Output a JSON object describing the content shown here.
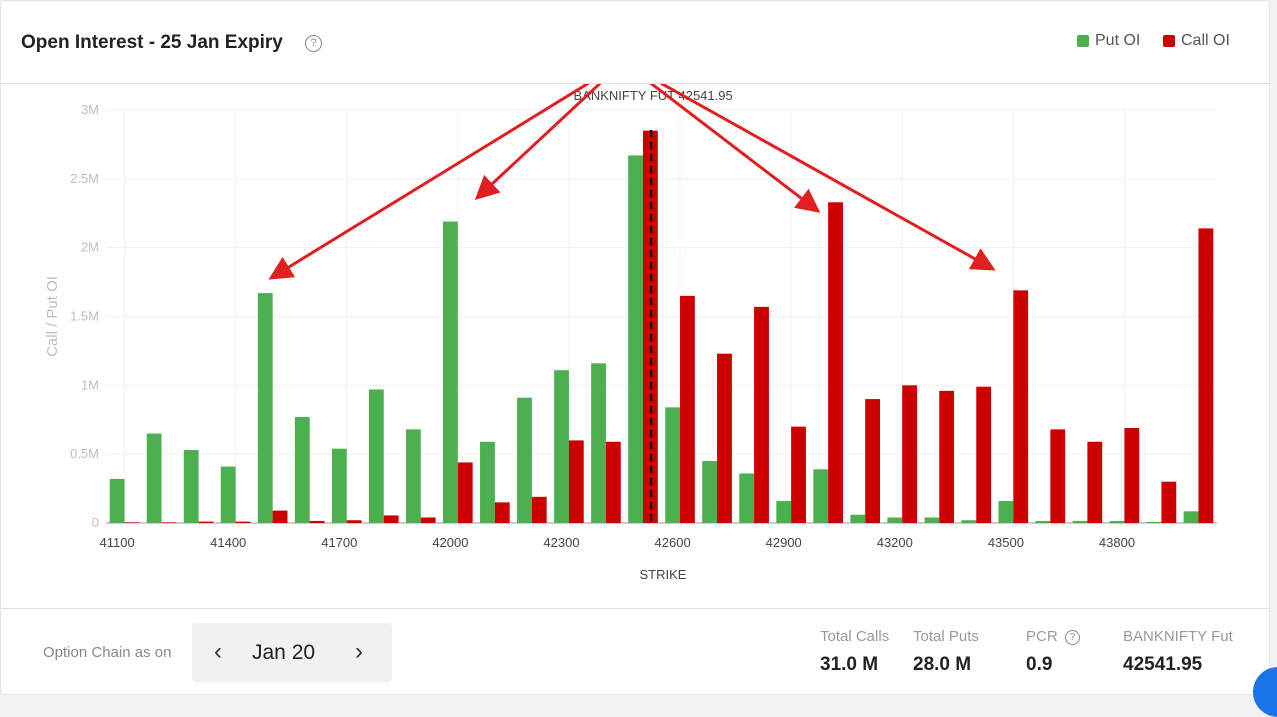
{
  "header": {
    "title": "Open Interest - 25 Jan Expiry",
    "help_icon": "question-circle-icon"
  },
  "chart_data": {
    "type": "bar",
    "title": "Open Interest - 25 Jan Expiry",
    "xlabel": "STRIKE",
    "ylabel": "Call / Put OI",
    "ylim": [
      0,
      3000000
    ],
    "y_ticks": [
      "0",
      "0.5M",
      "1M",
      "1.5M",
      "2M",
      "2.5M",
      "3M"
    ],
    "x_tick_labels": [
      "41100",
      "41400",
      "41700",
      "42000",
      "42300",
      "42600",
      "42900",
      "43200",
      "43500",
      "43800"
    ],
    "categories": [
      41100,
      41200,
      41300,
      41400,
      41500,
      41600,
      41700,
      41800,
      41900,
      42000,
      42100,
      42200,
      42300,
      42400,
      42500,
      42600,
      42700,
      42800,
      42900,
      43000,
      43100,
      43200,
      43300,
      43400,
      43500,
      43600,
      43700,
      43800,
      43900,
      44000
    ],
    "series": [
      {
        "name": "Put OI",
        "color": "#4caf50",
        "values": [
          320000,
          650000,
          530000,
          410000,
          1670000,
          770000,
          540000,
          970000,
          680000,
          2190000,
          590000,
          910000,
          1110000,
          1160000,
          2670000,
          840000,
          450000,
          360000,
          160000,
          390000,
          60000,
          40000,
          40000,
          20000,
          160000,
          15000,
          15000,
          15000,
          8000,
          85000
        ]
      },
      {
        "name": "Call OI",
        "color": "#cc0000",
        "values": [
          5000,
          5000,
          10000,
          10000,
          90000,
          15000,
          20000,
          55000,
          40000,
          440000,
          150000,
          190000,
          600000,
          590000,
          2850000,
          1650000,
          1230000,
          1570000,
          700000,
          2330000,
          900000,
          1000000,
          960000,
          990000,
          1690000,
          680000,
          590000,
          690000,
          300000,
          2140000
        ]
      }
    ],
    "marker": {
      "label": "BANKNIFTY FUT 42541.95",
      "value": 42541.95
    },
    "grid": true,
    "legend_position": "top-right",
    "annotation_color": "#e02020"
  },
  "footer": {
    "option_chain_label": "Option Chain as on",
    "date": "Jan 20",
    "prev_icon": "chevron-left-icon",
    "next_icon": "chevron-right-icon",
    "stats": [
      {
        "label": "Total Calls",
        "value": "31.0 M"
      },
      {
        "label": "Total Puts",
        "value": "28.0 M"
      },
      {
        "label": "PCR",
        "value": "0.9"
      },
      {
        "label": "BANKNIFTY Fut",
        "value": "42541.95"
      }
    ]
  }
}
